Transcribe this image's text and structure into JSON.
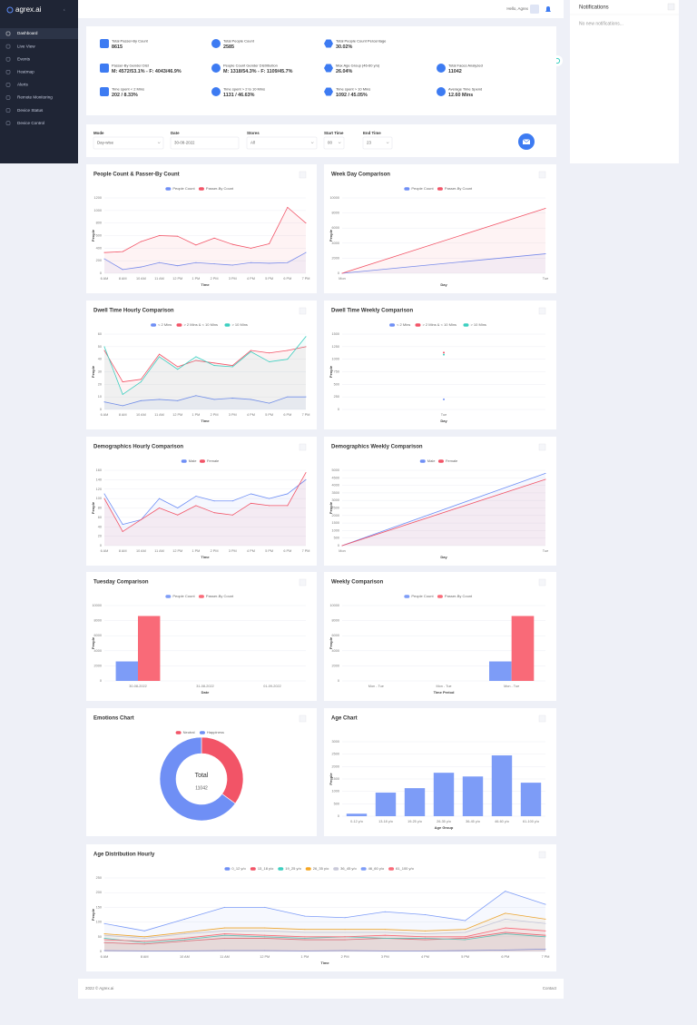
{
  "sidebar": {
    "logo": "agrex.ai",
    "menu": [
      "Dashboard",
      "Live View",
      "Events",
      "Heatmap",
      "Alerts",
      "Remote Monitoring",
      "Device Status",
      "Device Control"
    ]
  },
  "topbar": {
    "greeting": "Hello, Agrex"
  },
  "notifications": {
    "title": "Notifications",
    "empty": "No new notifications..."
  },
  "stats": [
    [
      {
        "label": "Total Passer-By Count",
        "value": 8615
      },
      {
        "label": "Total People Count",
        "value": 2585
      },
      {
        "label": "Total People Count Percentage",
        "value": "30.02%"
      }
    ],
    [
      {
        "label": "Passer-By Gender Dist",
        "value": "M: 4572/53.1% - F: 4043/46.9%"
      },
      {
        "label": "People Count Gender Distribution",
        "value": "M: 1318/54.3% - F: 1109/45.7%"
      },
      {
        "label": "Max Age Group (46-60 y/o)",
        "value": "26.04%"
      },
      {
        "label": "Total Faces Analyzed",
        "value": 11042
      }
    ],
    [
      {
        "label": "Time spent < 2 Mins",
        "value": "202 / 8.33%"
      },
      {
        "label": "Time spent > 2 to 10 Mins",
        "value": "1131 / 46.63%"
      },
      {
        "label": "Time spent > 10 Mins",
        "value": "1092 / 45.05%"
      },
      {
        "label": "Average Time Spend",
        "value": "12.60 Mins"
      }
    ]
  ],
  "filters": [
    {
      "label": "Mode",
      "value": "Day-wise"
    },
    {
      "label": "Date",
      "value": "30-08-2022"
    },
    {
      "label": "Stores",
      "value": "All"
    },
    {
      "label": "Start Time",
      "value": "00"
    },
    {
      "label": "End Time",
      "value": "23"
    }
  ],
  "footer": {
    "copyright": "2022 © Agrex.ai",
    "contact": "Contact"
  },
  "chart_data": [
    {
      "type": "line",
      "title": "People Count & Passer-By Count",
      "legend": "top",
      "grid": true,
      "x_label": "Time",
      "y_label": "People",
      "categories": [
        "6 AM",
        "8 AM",
        "10 AM",
        "11 AM",
        "12 PM",
        "1 PM",
        "2 PM",
        "3 PM",
        "4 PM",
        "5 PM",
        "6 PM",
        "7 PM"
      ],
      "series": [
        {
          "name": "People Count",
          "color": "#6f8ff5",
          "values": [
            230,
            60,
            100,
            170,
            120,
            170,
            150,
            130,
            170,
            160,
            170,
            330
          ]
        },
        {
          "name": "Passer-By Count",
          "color": "#f25467",
          "values": [
            330,
            345,
            505,
            600,
            590,
            450,
            560,
            460,
            400,
            470,
            1050,
            800
          ]
        }
      ],
      "ylim": [
        0,
        1200
      ],
      "yticks": [
        0,
        200,
        400,
        600,
        800,
        1000,
        1200
      ]
    },
    {
      "type": "line",
      "title": "Week Day Comparison",
      "legend": "top",
      "grid": true,
      "x_label": "Day",
      "y_label": "People",
      "categories": [
        "Mon",
        "Tue"
      ],
      "series": [
        {
          "name": "People Count",
          "color": "#6f8ff5",
          "values": [
            0,
            2585
          ]
        },
        {
          "name": "Passer-By Count",
          "color": "#f25467",
          "values": [
            0,
            8615
          ]
        }
      ],
      "ylim": [
        0,
        10000
      ],
      "yticks": [
        0,
        2000,
        4000,
        6000,
        8000,
        10000
      ]
    },
    {
      "type": "line",
      "title": "Dwell Time Hourly Comparison",
      "legend": "top",
      "grid": true,
      "x_label": "Time",
      "y_label": "People",
      "categories": [
        "6 AM",
        "8 AM",
        "10 AM",
        "11 AM",
        "12 PM",
        "1 PM",
        "2 PM",
        "3 PM",
        "4 PM",
        "5 PM",
        "6 PM",
        "7 PM"
      ],
      "series": [
        {
          "name": "< 2 Mins",
          "color": "#6f8ff5",
          "values": [
            6,
            3,
            7,
            8,
            7,
            11,
            8,
            9,
            8,
            5,
            10,
            10
          ]
        },
        {
          "name": "> 2 Mins & < 10 Mins",
          "color": "#f25467",
          "values": [
            47,
            22,
            24,
            44,
            34,
            39,
            37,
            35,
            47,
            45,
            47,
            50
          ]
        },
        {
          "name": "> 10 Mins",
          "color": "#3ccfc0",
          "values": [
            50,
            12,
            22,
            42,
            32,
            42,
            35,
            34,
            46,
            38,
            40,
            58
          ]
        }
      ],
      "ylim": [
        0,
        60
      ],
      "yticks": [
        0,
        10,
        20,
        30,
        40,
        50,
        60
      ]
    },
    {
      "type": "line",
      "title": "Dwell Time Weekly Comparison",
      "legend": "top",
      "grid": true,
      "x_label": "Day",
      "y_label": "People",
      "categories": [
        "Tue"
      ],
      "series": [
        {
          "name": "< 2 Mins",
          "color": "#6f8ff5",
          "values": [
            202
          ]
        },
        {
          "name": "> 2 Mins & < 10 Mins",
          "color": "#f25467",
          "values": [
            1131
          ]
        },
        {
          "name": "> 10 Mins",
          "color": "#3ccfc0",
          "values": [
            1092
          ]
        }
      ],
      "ylim": [
        0,
        1500
      ],
      "yticks": [
        0,
        250,
        500,
        750,
        1000,
        1250,
        1500
      ]
    },
    {
      "type": "line",
      "title": "Demographics Hourly Comparison",
      "legend": "top",
      "grid": true,
      "x_label": "Time",
      "y_label": "People",
      "categories": [
        "6 AM",
        "8 AM",
        "10 AM",
        "11 AM",
        "12 PM",
        "1 PM",
        "2 PM",
        "3 PM",
        "4 PM",
        "5 PM",
        "6 PM",
        "7 PM"
      ],
      "series": [
        {
          "name": "Male",
          "color": "#6f8ff5",
          "values": [
            110,
            45,
            55,
            100,
            80,
            105,
            95,
            95,
            110,
            100,
            110,
            140
          ]
        },
        {
          "name": "Female",
          "color": "#f25467",
          "values": [
            100,
            30,
            55,
            80,
            65,
            85,
            70,
            65,
            90,
            85,
            85,
            155
          ]
        }
      ],
      "ylim": [
        0,
        160
      ],
      "yticks": [
        0,
        20,
        40,
        60,
        80,
        100,
        120,
        140,
        160
      ]
    },
    {
      "type": "line",
      "title": "Demographics Weekly Comparison",
      "legend": "top",
      "grid": true,
      "x_label": "Day",
      "y_label": "People",
      "categories": [
        "Mon",
        "Tue"
      ],
      "series": [
        {
          "name": "Male",
          "color": "#6f8ff5",
          "values": [
            0,
            4800
          ]
        },
        {
          "name": "Female",
          "color": "#f25467",
          "values": [
            0,
            4400
          ]
        }
      ],
      "ylim": [
        0,
        5000
      ],
      "yticks": [
        0,
        500,
        1000,
        1500,
        2000,
        2500,
        3000,
        3500,
        4000,
        4500,
        5000
      ]
    },
    {
      "type": "bar",
      "title": "Tuesday Comparison",
      "legend": "top",
      "grid": true,
      "x_label": "Date",
      "y_label": "People",
      "categories": [
        "30-08-2022",
        "31-08-2022",
        "01-09-2022"
      ],
      "series": [
        {
          "name": "People Count",
          "color": "#7d9cf7",
          "values": [
            2585,
            null,
            null
          ]
        },
        {
          "name": "Passer-By Count",
          "color": "#f96a78",
          "values": [
            8615,
            null,
            null
          ]
        }
      ],
      "ylim": [
        0,
        10000
      ],
      "yticks": [
        0,
        2000,
        4000,
        6000,
        8000,
        10000
      ]
    },
    {
      "type": "bar",
      "title": "Weekly Comparison",
      "legend": "top",
      "grid": true,
      "x_label": "Time Period",
      "y_label": "People",
      "categories": [
        "Mon - Tue",
        "Mon - Tue",
        "Mon - Tue"
      ],
      "series": [
        {
          "name": "People Count",
          "color": "#7d9cf7",
          "values": [
            null,
            null,
            2585
          ]
        },
        {
          "name": "Passer-By Count",
          "color": "#f96a78",
          "values": [
            null,
            null,
            8615
          ]
        }
      ],
      "ylim": [
        0,
        10000
      ],
      "yticks": [
        0,
        2000,
        4000,
        6000,
        8000,
        10000
      ]
    },
    {
      "type": "pie",
      "title": "Emotions Chart",
      "legend": "top",
      "donut": true,
      "center_label": "Total",
      "center_value": 11042,
      "categories": [
        "Neutral",
        "Happiness"
      ],
      "values": [
        3865,
        7177
      ],
      "colors": [
        "#f25467",
        "#6f8ff5"
      ]
    },
    {
      "type": "bar",
      "title": "Age Chart",
      "grid": true,
      "x_label": "Age Group",
      "y_label": "People",
      "categories": [
        "0-12 y/o",
        "13-18 y/o",
        "19-25 y/o",
        "26-35 y/o",
        "36-45 y/o",
        "46-60 y/o",
        "61-100 y/o"
      ],
      "values": [
        100,
        950,
        1130,
        1750,
        1600,
        2450,
        1350
      ],
      "color": "#7d9cf7",
      "ylim": [
        0,
        3000
      ],
      "yticks": [
        0,
        500,
        1000,
        1500,
        2000,
        2500,
        3000
      ]
    },
    {
      "type": "line",
      "title": "Age Distribution Hourly",
      "legend": "top",
      "grid": true,
      "x_label": "Time",
      "y_label": "People",
      "categories": [
        "6 AM",
        "8 AM",
        "10 AM",
        "11 AM",
        "12 PM",
        "1 PM",
        "2 PM",
        "3 PM",
        "4 PM",
        "5 PM",
        "6 PM",
        "7 PM"
      ],
      "series": [
        {
          "name": "0_12 y/o",
          "color": "#6f8ff5",
          "values": [
            3,
            2,
            2,
            3,
            3,
            2,
            3,
            2,
            2,
            3,
            5,
            8
          ]
        },
        {
          "name": "13_18 y/o",
          "color": "#f25467",
          "values": [
            30,
            25,
            35,
            45,
            45,
            40,
            40,
            45,
            40,
            45,
            65,
            55
          ]
        },
        {
          "name": "19_25 y/o",
          "color": "#3ccfc0",
          "values": [
            45,
            30,
            40,
            55,
            50,
            45,
            50,
            45,
            45,
            40,
            60,
            50
          ]
        },
        {
          "name": "26_35 y/o",
          "color": "#f5a623",
          "values": [
            60,
            50,
            65,
            80,
            80,
            75,
            75,
            75,
            70,
            75,
            130,
            110
          ]
        },
        {
          "name": "36_45 y/o",
          "color": "#c9c9d9",
          "values": [
            55,
            45,
            60,
            70,
            70,
            65,
            65,
            65,
            60,
            65,
            110,
            95
          ]
        },
        {
          "name": "46_60 y/o",
          "color": "#7d9cf7",
          "values": [
            95,
            70,
            110,
            150,
            150,
            120,
            115,
            135,
            125,
            105,
            205,
            160
          ]
        },
        {
          "name": "61_100 y/o",
          "color": "#f96a78",
          "values": [
            40,
            35,
            45,
            60,
            55,
            50,
            50,
            55,
            50,
            50,
            80,
            70
          ]
        }
      ],
      "ylim": [
        0,
        250
      ],
      "yticks": [
        0,
        50,
        100,
        150,
        200,
        250
      ]
    }
  ]
}
